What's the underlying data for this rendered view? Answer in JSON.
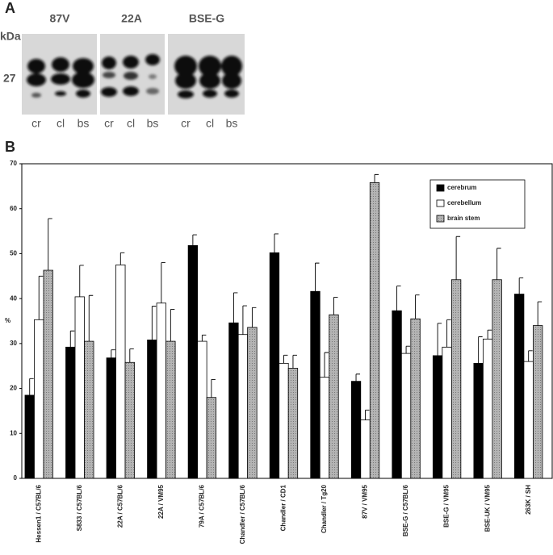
{
  "panels": [
    "A",
    "B"
  ],
  "blot": {
    "unit": "kDa",
    "marker": "27",
    "groups": [
      {
        "name": "87V",
        "lanes": [
          "cr",
          "cl",
          "bs"
        ]
      },
      {
        "name": "22A",
        "lanes": [
          "cr",
          "cl",
          "bs"
        ]
      },
      {
        "name": "BSE-G",
        "lanes": [
          "cr",
          "cl",
          "bs"
        ]
      }
    ]
  },
  "chart_data": {
    "type": "bar",
    "y_label": "%",
    "categories": [
      "Hessen1 / C57BL/6",
      "S833 / C57BL/6",
      "22A / C57BL/6",
      "22A / VM95",
      "79A / C57BL/6",
      "Chandler / C57BL/6",
      "Chandler / CD1",
      "Chandler / Tg20",
      "87V / VM95",
      "BSE-G / C57BL/6",
      "BSE-G / VM95",
      "BSE-UK / VM95",
      "263K / SH"
    ],
    "series": [
      {
        "name": "cerebrum",
        "color": "#000000",
        "values": [
          18.5,
          29.2,
          26.8,
          30.8,
          51.8,
          34.6,
          50.2,
          41.6,
          21.6,
          37.3,
          27.3,
          25.6,
          41.0
        ],
        "errors": [
          3.7,
          3.6,
          1.8,
          7.5,
          2.4,
          6.7,
          4.2,
          6.3,
          1.6,
          5.5,
          7.2,
          5.9,
          3.6
        ]
      },
      {
        "name": "cerebellum",
        "color": "#ffffff",
        "values": [
          35.3,
          40.4,
          47.5,
          39.0,
          30.5,
          32.0,
          25.6,
          22.5,
          13.0,
          27.8,
          29.2,
          31.0,
          26.0
        ],
        "errors": [
          9.7,
          7.0,
          2.7,
          9.0,
          1.4,
          6.4,
          1.8,
          5.5,
          2.2,
          1.6,
          6.1,
          2.0,
          2.4
        ]
      },
      {
        "name": "brain stem",
        "color": "#a8a8a8",
        "values": [
          46.3,
          30.5,
          25.8,
          30.5,
          18.0,
          33.6,
          24.5,
          36.4,
          65.8,
          35.5,
          44.2,
          44.2,
          34.0
        ],
        "errors": [
          11.5,
          10.2,
          3.0,
          7.1,
          4.0,
          4.4,
          2.9,
          3.9,
          1.8,
          5.3,
          9.6,
          7.0,
          5.3
        ]
      }
    ],
    "ylim": [
      0,
      70
    ],
    "yticks": [
      0,
      10,
      20,
      30,
      40,
      50,
      60,
      70
    ],
    "legend": "upper right"
  }
}
